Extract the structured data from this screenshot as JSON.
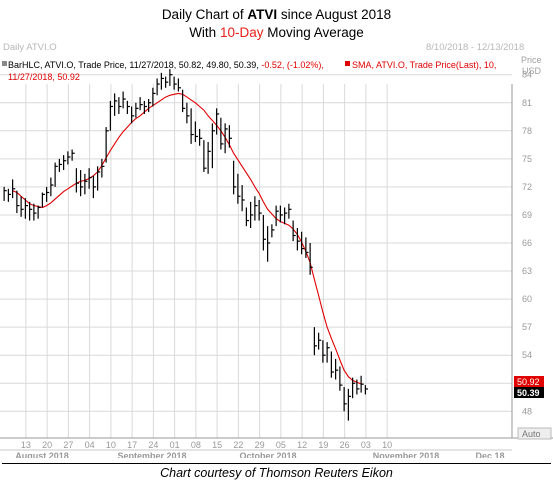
{
  "title": {
    "line1_prefix": "Daily Chart of ",
    "line1_ticker": "ATVI",
    "line1_suffix": " since August 2018",
    "line2_prefix": "With ",
    "line2_highlight": "10-Day",
    "line2_suffix": " Moving Average",
    "highlight_color": "#e8201a"
  },
  "panel": {
    "name": "Daily ATVI.O",
    "date_range": "8/10/2018 - 12/13/2018",
    "price_label": "Price",
    "currency": "USD",
    "auto_button": "Auto"
  },
  "legend": {
    "bar_line_1": "BarHLC, ATVI.O, Trade Price, 11/27/2018, 50.82, 49.80, 50.39, ",
    "bar_change": "-0.52, (-1.02%),",
    "sma_line_1": "SMA, ATVI.O, Trade Price(Last), 10,",
    "sma_line_2": "11/27/2018, 50.92"
  },
  "footer": {
    "caption": "Chart courtesy of Thomson Reuters Eikon"
  },
  "chart_data": {
    "type": "line",
    "y_axis": {
      "range": [
        46,
        86
      ],
      "ticks": [
        48,
        51,
        54,
        57,
        60,
        63,
        66,
        69,
        72,
        75,
        78,
        81,
        84
      ],
      "side": "right",
      "grid": true
    },
    "x_axis": {
      "day_ticks": [
        "13",
        "20",
        "27",
        "04",
        "10",
        "17",
        "24",
        "01",
        "08",
        "15",
        "22",
        "29",
        "05",
        "12",
        "19",
        "26",
        "03",
        "10"
      ],
      "months": [
        "August 2018",
        "September 2018",
        "October 2018",
        "November 2018",
        "Dec 18"
      ],
      "grid": true
    },
    "current_values": {
      "sma": "50.92",
      "close": "50.39",
      "sma_color": "#e00000",
      "close_color": "#000000"
    },
    "series": [
      {
        "name": "BarHLC",
        "kind": "hlc",
        "color": "#000000",
        "start": 0,
        "bars": [
          [
            72,
            70.5,
            71.6
          ],
          [
            71.8,
            70.4,
            71.2
          ],
          [
            72.8,
            70.8,
            71.8
          ],
          [
            71.6,
            69.2,
            70.0
          ],
          [
            71.0,
            68.8,
            69.6
          ],
          [
            70.8,
            68.6,
            70.0
          ],
          [
            70.4,
            68.4,
            69.6
          ],
          [
            70.2,
            68.4,
            69.2
          ],
          [
            70.0,
            68.6,
            69.8
          ],
          [
            71.4,
            69.8,
            71.2
          ],
          [
            72.0,
            70.4,
            71.4
          ],
          [
            73.0,
            71.0,
            72.2
          ],
          [
            74.6,
            72.0,
            74.2
          ],
          [
            75.0,
            73.6,
            74.4
          ],
          [
            75.4,
            73.8,
            74.8
          ],
          [
            75.8,
            74.4,
            75.2
          ],
          [
            76.0,
            74.8,
            75.6
          ],
          [
            74.0,
            71.4,
            72.4
          ],
          [
            73.8,
            71.0,
            72.0
          ],
          [
            73.4,
            71.2,
            72.6
          ],
          [
            74.0,
            71.8,
            73.0
          ],
          [
            73.2,
            70.8,
            72.0
          ],
          [
            74.2,
            71.6,
            73.6
          ],
          [
            75.0,
            73.0,
            74.2
          ],
          [
            78.4,
            74.6,
            78.0
          ],
          [
            81.2,
            78.0,
            80.6
          ],
          [
            82.0,
            79.6,
            81.2
          ],
          [
            81.6,
            79.8,
            80.6
          ],
          [
            82.2,
            80.4,
            81.4
          ],
          [
            81.2,
            79.8,
            80.6
          ],
          [
            80.6,
            78.8,
            79.6
          ],
          [
            81.0,
            79.4,
            80.4
          ],
          [
            81.6,
            80.2,
            80.8
          ],
          [
            81.2,
            79.8,
            80.6
          ],
          [
            81.4,
            80.0,
            81.0
          ],
          [
            82.6,
            80.6,
            82.0
          ],
          [
            83.6,
            81.8,
            83.0
          ],
          [
            84.2,
            82.4,
            83.6
          ],
          [
            83.8,
            82.6,
            83.2
          ],
          [
            84.6,
            82.8,
            84.0
          ],
          [
            83.8,
            82.4,
            83.0
          ],
          [
            83.6,
            82.2,
            82.6
          ],
          [
            82.4,
            80.0,
            80.4
          ],
          [
            81.0,
            78.8,
            79.6
          ],
          [
            80.4,
            76.6,
            77.6
          ],
          [
            79.0,
            76.8,
            77.4
          ],
          [
            78.2,
            76.4,
            77.2
          ],
          [
            77.0,
            73.6,
            74.0
          ],
          [
            76.8,
            73.4,
            75.8
          ],
          [
            78.8,
            74.0,
            78.0
          ],
          [
            80.4,
            77.6,
            79.8
          ],
          [
            79.4,
            76.0,
            76.6
          ],
          [
            78.8,
            75.6,
            78.2
          ],
          [
            78.6,
            76.2,
            77.2
          ],
          [
            74.8,
            71.2,
            72.0
          ],
          [
            73.4,
            70.2,
            71.0
          ],
          [
            72.2,
            69.4,
            70.6
          ],
          [
            69.8,
            67.8,
            68.4
          ],
          [
            70.4,
            67.6,
            69.0
          ],
          [
            71.0,
            68.4,
            70.0
          ],
          [
            70.6,
            68.4,
            69.2
          ],
          [
            69.0,
            65.2,
            66.4
          ],
          [
            67.8,
            64.0,
            66.0
          ],
          [
            68.0,
            66.6,
            67.4
          ],
          [
            70.0,
            67.8,
            69.4
          ],
          [
            70.0,
            68.2,
            69.0
          ],
          [
            69.8,
            68.0,
            69.2
          ],
          [
            70.2,
            68.6,
            69.6
          ],
          [
            68.4,
            66.2,
            66.8
          ],
          [
            67.6,
            65.2,
            66.2
          ],
          [
            67.2,
            64.8,
            65.4
          ],
          [
            66.6,
            64.4,
            65.0
          ],
          [
            66.0,
            62.6,
            63.4
          ],
          [
            57.0,
            54.0,
            55.0
          ],
          [
            56.4,
            54.6,
            55.6
          ],
          [
            55.6,
            53.2,
            54.0
          ],
          [
            55.4,
            53.2,
            54.8
          ],
          [
            54.4,
            51.6,
            52.2
          ],
          [
            53.6,
            51.4,
            52.4
          ],
          [
            52.8,
            50.2,
            50.8
          ],
          [
            50.6,
            48.0,
            48.8
          ],
          [
            50.4,
            47.0,
            49.6
          ],
          [
            51.6,
            49.4,
            51.0
          ],
          [
            51.4,
            49.8,
            50.4
          ],
          [
            51.8,
            50.0,
            50.9
          ],
          [
            50.8,
            49.8,
            50.39
          ]
        ]
      },
      {
        "name": "SMA",
        "kind": "line",
        "color": "#e00000",
        "start": 2,
        "values": [
          71.6,
          71.4,
          71.0,
          70.6,
          70.2,
          70.0,
          69.9,
          69.8,
          70.0,
          70.3,
          70.7,
          71.1,
          71.5,
          71.8,
          72.1,
          72.4,
          72.6,
          72.7,
          72.9,
          73.2,
          73.6,
          74.3,
          75.1,
          75.9,
          76.6,
          77.3,
          77.9,
          78.4,
          78.9,
          79.3,
          79.6,
          80.0,
          80.4,
          80.7,
          81.0,
          81.3,
          81.6,
          81.8,
          81.9,
          82.0,
          81.9,
          81.6,
          81.3,
          81.0,
          80.6,
          80.2,
          79.6,
          79.1,
          78.6,
          78.0,
          77.3,
          76.5,
          75.6,
          74.9,
          74.2,
          73.5,
          72.8,
          72.0,
          71.3,
          70.4,
          69.6,
          69.1,
          68.6,
          68.3,
          68.1,
          67.9,
          67.5,
          66.9,
          66.1,
          65.1,
          63.9,
          62.1,
          60.4,
          58.6,
          57.0,
          55.8,
          54.7,
          53.5,
          52.4,
          51.7,
          51.3,
          51.1,
          50.92
        ]
      }
    ]
  }
}
